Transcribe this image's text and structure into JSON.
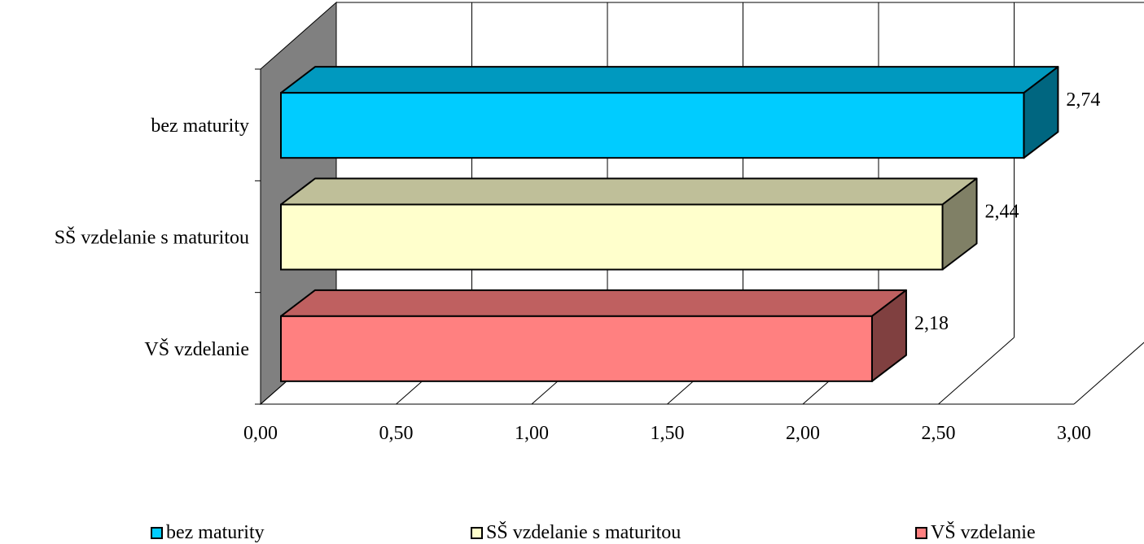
{
  "chart_data": {
    "type": "bar",
    "orientation": "horizontal",
    "style": "3d",
    "categories": [
      "bez maturity",
      "SŠ vzdelanie s maturitou",
      "VŠ vzdelanie"
    ],
    "values": [
      2.74,
      2.44,
      2.18
    ],
    "value_labels": [
      "2,74",
      "2,44",
      "2,18"
    ],
    "colors": [
      "#00CCFF",
      "#FFFFCC",
      "#FF8080"
    ],
    "xlim": [
      0,
      3
    ],
    "x_ticks": [
      "0,00",
      "0,50",
      "1,00",
      "1,50",
      "2,00",
      "2,50",
      "3,00"
    ],
    "grid": true,
    "legend_position": "bottom",
    "legend": [
      "bez maturity",
      "SŠ vzdelanie s maturitou",
      "VŠ vzdelanie"
    ]
  }
}
